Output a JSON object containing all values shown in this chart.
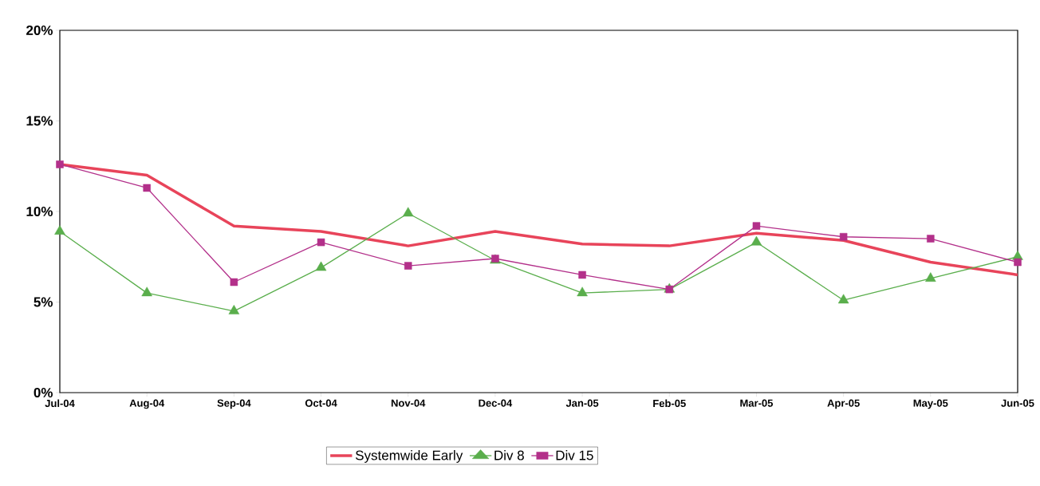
{
  "chart_data": {
    "type": "line",
    "categories": [
      "Jul-04",
      "Aug-04",
      "Sep-04",
      "Oct-04",
      "Nov-04",
      "Dec-04",
      "Jan-05",
      "Feb-05",
      "Mar-05",
      "Apr-05",
      "May-05",
      "Jun-05"
    ],
    "series": [
      {
        "name": "Systemwide Early",
        "color": "#e8445a",
        "marker": "none",
        "values": [
          12.6,
          12.0,
          9.2,
          8.9,
          8.1,
          8.9,
          8.2,
          8.1,
          8.8,
          8.4,
          7.2,
          6.5
        ]
      },
      {
        "name": "Div 8",
        "color": "#5aae4c",
        "marker": "triangle",
        "values": [
          8.9,
          5.5,
          4.5,
          6.9,
          9.9,
          7.3,
          5.5,
          5.7,
          8.3,
          5.1,
          6.3,
          7.5
        ]
      },
      {
        "name": "Div 15",
        "color": "#b3308a",
        "marker": "square",
        "values": [
          12.6,
          11.3,
          6.1,
          8.3,
          7.0,
          7.4,
          6.5,
          5.7,
          9.2,
          8.6,
          8.5,
          7.2
        ]
      }
    ],
    "ylim": [
      0,
      20
    ],
    "yticks": [
      {
        "value": 0,
        "label": "0%"
      },
      {
        "value": 5,
        "label": "5%"
      },
      {
        "value": 10,
        "label": "10%"
      },
      {
        "value": 15,
        "label": "15%"
      },
      {
        "value": 20,
        "label": "20%"
      }
    ],
    "grid": false,
    "legend": "bottom"
  }
}
